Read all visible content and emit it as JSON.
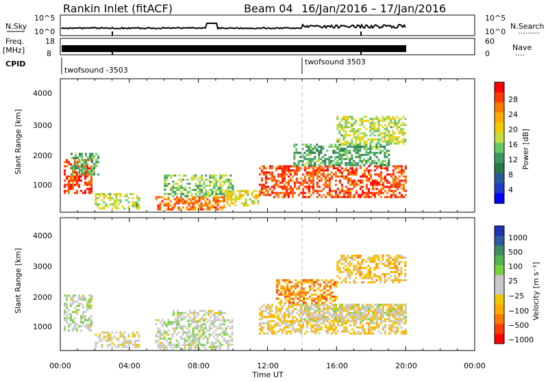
{
  "header": {
    "station": "Rankin Inlet (fitACF)",
    "beam": "Beam 04",
    "dates": "16/Jan/2016 – 17/Jan/2016"
  },
  "noise_panel": {
    "left_label": "N.Sky",
    "left_ticks": [
      "10^5",
      "10^0"
    ],
    "right_label": "N.Search",
    "right_ticks": [
      "10^5",
      "10^0"
    ],
    "right_legend_glyph": "·········"
  },
  "freq_panel": {
    "left_label_line1": "Freq.",
    "left_label_line2": "[MHz]",
    "left_ticks": [
      "18",
      "8"
    ],
    "right_label": "Nave",
    "right_ticks": [
      "60",
      "0"
    ],
    "right_legend_glyph": "····"
  },
  "cpid_panel": {
    "label": "CPID",
    "programs": [
      {
        "name": "twofsound -3503",
        "start_hour": 0
      },
      {
        "name": "twofsound 3503",
        "start_hour": 14
      }
    ]
  },
  "x_axis": {
    "label": "Time UT",
    "ticks": [
      "00:00",
      "04:00",
      "08:00",
      "12:00",
      "16:00",
      "20:00",
      "00:00"
    ]
  },
  "power_panel": {
    "ylabel": "Slant Range [km]",
    "yticks": [
      "1000",
      "2000",
      "3000",
      "4000"
    ],
    "colorbar_title": "Power [dB]",
    "colorbar_ticks": [
      "28",
      "24",
      "20",
      "16",
      "12",
      "8",
      "4"
    ],
    "colorbar_colors": [
      "#ff0000",
      "#ff3c00",
      "#ff7800",
      "#ffaa00",
      "#f0cc00",
      "#c8dc3c",
      "#64c864",
      "#3c9664",
      "#287846",
      "#285aa0",
      "#1e3cc8",
      "#0000ff"
    ]
  },
  "velocity_panel": {
    "ylabel": "Slant Range [km]",
    "yticks": [
      "1000",
      "2000",
      "3000",
      "4000"
    ],
    "colorbar_title": "Velocity [m s⁻¹]",
    "colorbar_ticks": [
      "1000",
      "500",
      "100",
      "25",
      "−25",
      "−100",
      "−500",
      "−1000"
    ],
    "colorbar_colors": [
      "#1e32b4",
      "#2d5aa0",
      "#3c8c64",
      "#50b450",
      "#78d23c",
      "#c8c8c8",
      "#c8c8c8",
      "#f0c800",
      "#ffaa00",
      "#ff7800",
      "#ff3c00",
      "#ff0000"
    ]
  },
  "chart_data": [
    {
      "type": "heatmap",
      "title": "Power [dB]",
      "xlabel": "Time UT",
      "ylabel": "Slant Range [km]",
      "xlim_hours": [
        0,
        24
      ],
      "ylim_km": [
        180,
        4500
      ],
      "colorbar_range": [
        0,
        30
      ],
      "regions": [
        {
          "t": [
            0.2,
            1.8
          ],
          "r": [
            800,
            1900
          ],
          "value": 26
        },
        {
          "t": [
            0.6,
            2.2
          ],
          "r": [
            1400,
            2100
          ],
          "value": 12
        },
        {
          "t": [
            2.0,
            4.5
          ],
          "r": [
            300,
            800
          ],
          "value": 16
        },
        {
          "t": [
            5.5,
            9.5
          ],
          "r": [
            250,
            700
          ],
          "value": 24
        },
        {
          "t": [
            6.0,
            10.0
          ],
          "r": [
            700,
            1400
          ],
          "value": 14
        },
        {
          "t": [
            9.5,
            11.5
          ],
          "r": [
            400,
            900
          ],
          "value": 18
        },
        {
          "t": [
            11.5,
            20.0
          ],
          "r": [
            700,
            1700
          ],
          "value": 26
        },
        {
          "t": [
            13.5,
            19.0
          ],
          "r": [
            1700,
            2400
          ],
          "value": 12
        },
        {
          "t": [
            16.0,
            20.0
          ],
          "r": [
            2400,
            3300
          ],
          "value": 16
        }
      ]
    },
    {
      "type": "heatmap",
      "title": "Velocity [m s⁻¹]",
      "xlabel": "Time UT",
      "ylabel": "Slant Range [km]",
      "xlim_hours": [
        0,
        24
      ],
      "ylim_km": [
        180,
        4500
      ],
      "colorbar_range": [
        -1000,
        1000
      ],
      "regions": [
        {
          "t": [
            0.2,
            1.8
          ],
          "r": [
            800,
            2000
          ],
          "value": 60
        },
        {
          "t": [
            2.0,
            4.5
          ],
          "r": [
            300,
            800
          ],
          "value": -100
        },
        {
          "t": [
            5.5,
            10.0
          ],
          "r": [
            250,
            1200
          ],
          "value": 50
        },
        {
          "t": [
            6.5,
            9.5
          ],
          "r": [
            1100,
            1500
          ],
          "value": 0
        },
        {
          "t": [
            11.5,
            20.0
          ],
          "r": [
            700,
            1700
          ],
          "value": -250
        },
        {
          "t": [
            14.0,
            20.0
          ],
          "r": [
            1100,
            1700
          ],
          "value": 5
        },
        {
          "t": [
            12.5,
            16.0
          ],
          "r": [
            1700,
            2500
          ],
          "value": -500
        },
        {
          "t": [
            16.0,
            20.0
          ],
          "r": [
            2400,
            3300
          ],
          "value": -300
        }
      ]
    }
  ]
}
